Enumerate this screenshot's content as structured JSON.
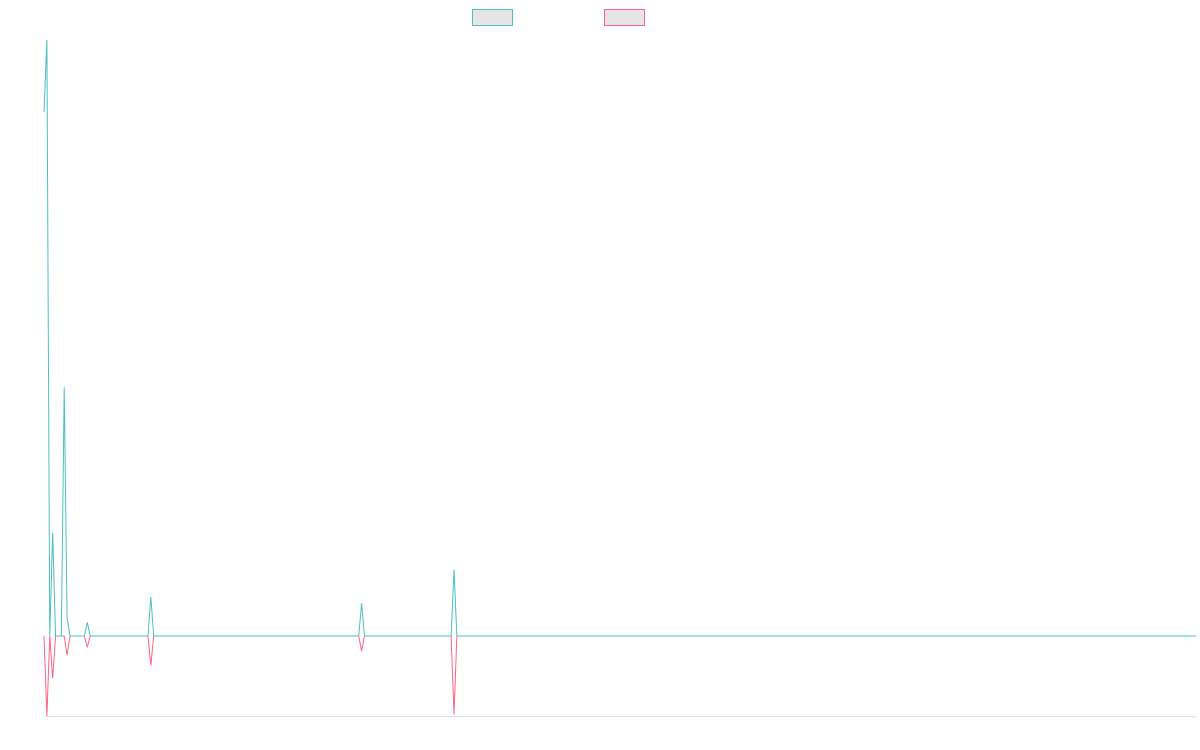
{
  "chart_data": {
    "type": "line",
    "title": "",
    "xlabel": "",
    "ylabel": "",
    "grid": false,
    "legend_placement": "top-center",
    "ylim": [
      -100,
      750
    ],
    "x_count": 400,
    "series": [
      {
        "color": "#4bc0c0",
        "legend_fill": "#e5e5e5",
        "points": [
          [
            0,
            655
          ],
          [
            1,
            745
          ],
          [
            2,
            0
          ],
          [
            3,
            129
          ],
          [
            4,
            0
          ],
          [
            5,
            0
          ],
          [
            6,
            0
          ],
          [
            7,
            311
          ],
          [
            8,
            23
          ],
          [
            9,
            0
          ],
          [
            10,
            0
          ],
          [
            11,
            0
          ],
          [
            12,
            0
          ],
          [
            13,
            0
          ],
          [
            14,
            0
          ],
          [
            15,
            17
          ],
          [
            16,
            0
          ],
          [
            36,
            0
          ],
          [
            37,
            49
          ],
          [
            38,
            0
          ],
          [
            109,
            0
          ],
          [
            110,
            41
          ],
          [
            111,
            0
          ],
          [
            141,
            0
          ],
          [
            142,
            83
          ],
          [
            143,
            0
          ],
          [
            399,
            0
          ]
        ]
      },
      {
        "color": "#ff6384",
        "legend_fill": "#e5e5e5",
        "points": [
          [
            0,
            0
          ],
          [
            1,
            -100
          ],
          [
            2,
            0
          ],
          [
            3,
            -53
          ],
          [
            4,
            0
          ],
          [
            5,
            0
          ],
          [
            6,
            0
          ],
          [
            7,
            0
          ],
          [
            8,
            -24
          ],
          [
            9,
            0
          ],
          [
            10,
            0
          ],
          [
            11,
            0
          ],
          [
            12,
            0
          ],
          [
            13,
            0
          ],
          [
            14,
            0
          ],
          [
            15,
            -14
          ],
          [
            16,
            0
          ],
          [
            36,
            0
          ],
          [
            37,
            -37
          ],
          [
            38,
            0
          ],
          [
            109,
            0
          ],
          [
            110,
            -19
          ],
          [
            111,
            0
          ],
          [
            141,
            0
          ],
          [
            142,
            -98
          ],
          [
            143,
            0
          ],
          [
            399,
            0
          ]
        ]
      }
    ]
  }
}
